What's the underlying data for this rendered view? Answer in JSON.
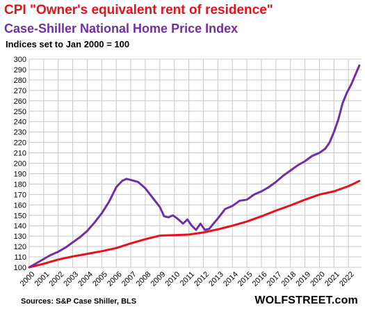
{
  "title": "CPI \"Owner's equivalent rent of residence\"",
  "subtitle": "Case-Shiller National Home Price Index",
  "note": "Indices set to Jan 2000 = 100",
  "source": "Sources: S&P Case Shiller, BLS",
  "brand": "WOLFSTREET.com",
  "colors": {
    "cpi": "#e8101a",
    "case_shiller": "#7030a0",
    "grid": "#c8c8c8"
  },
  "chart_data": {
    "type": "line",
    "xlim": [
      2000,
      2022.9
    ],
    "ylim": [
      100,
      300
    ],
    "ytick_step": 10,
    "grid": true,
    "x_tick_labels": [
      "2000",
      "2001",
      "2002",
      "2003",
      "2004",
      "2005",
      "2006",
      "2007",
      "2008",
      "2009",
      "2010",
      "2011",
      "2012",
      "2013",
      "2014",
      "2015",
      "2016",
      "2017",
      "2018",
      "2019",
      "2020",
      "2021",
      "2022"
    ],
    "series": [
      {
        "name": "CPI \"Owner's equivalent rent of residence\"",
        "color": "#e8101a",
        "points": [
          [
            2000,
            100
          ],
          [
            2001,
            103.5
          ],
          [
            2002,
            107.5
          ],
          [
            2003,
            110.5
          ],
          [
            2004,
            113
          ],
          [
            2005,
            115.5
          ],
          [
            2006,
            118.5
          ],
          [
            2007,
            123
          ],
          [
            2008,
            127
          ],
          [
            2009,
            130.5
          ],
          [
            2010,
            131
          ],
          [
            2011,
            131.5
          ],
          [
            2012,
            133.5
          ],
          [
            2013,
            136.5
          ],
          [
            2014,
            140
          ],
          [
            2015,
            144
          ],
          [
            2016,
            149
          ],
          [
            2017,
            154.5
          ],
          [
            2018,
            159.5
          ],
          [
            2019,
            165
          ],
          [
            2020,
            170
          ],
          [
            2021,
            173
          ],
          [
            2022,
            178
          ],
          [
            2022.75,
            183
          ]
        ]
      },
      {
        "name": "Case-Shiller National Home Price Index",
        "color": "#7030a0",
        "points": [
          [
            2000,
            100
          ],
          [
            2000.5,
            104
          ],
          [
            2001,
            108
          ],
          [
            2001.5,
            112
          ],
          [
            2002,
            115
          ],
          [
            2002.5,
            119
          ],
          [
            2003,
            124
          ],
          [
            2003.5,
            129
          ],
          [
            2004,
            135
          ],
          [
            2004.5,
            143
          ],
          [
            2005,
            152
          ],
          [
            2005.5,
            163
          ],
          [
            2006,
            177
          ],
          [
            2006.4,
            183
          ],
          [
            2006.7,
            185
          ],
          [
            2007,
            184
          ],
          [
            2007.5,
            182
          ],
          [
            2008,
            176
          ],
          [
            2008.5,
            167
          ],
          [
            2009,
            158
          ],
          [
            2009.3,
            149
          ],
          [
            2009.6,
            148
          ],
          [
            2009.9,
            150
          ],
          [
            2010.2,
            147
          ],
          [
            2010.6,
            142
          ],
          [
            2010.9,
            146
          ],
          [
            2011.2,
            140
          ],
          [
            2011.5,
            136
          ],
          [
            2011.8,
            142
          ],
          [
            2012.1,
            136
          ],
          [
            2012.4,
            137
          ],
          [
            2012.7,
            142
          ],
          [
            2013,
            147
          ],
          [
            2013.5,
            156
          ],
          [
            2014,
            159
          ],
          [
            2014.5,
            164
          ],
          [
            2015,
            165
          ],
          [
            2015.5,
            170
          ],
          [
            2016,
            173
          ],
          [
            2016.5,
            177
          ],
          [
            2017,
            182
          ],
          [
            2017.5,
            188
          ],
          [
            2018,
            193
          ],
          [
            2018.5,
            198
          ],
          [
            2019,
            202
          ],
          [
            2019.5,
            207
          ],
          [
            2020,
            210
          ],
          [
            2020.4,
            214
          ],
          [
            2020.7,
            220
          ],
          [
            2021,
            230
          ],
          [
            2021.3,
            242
          ],
          [
            2021.6,
            258
          ],
          [
            2021.9,
            268
          ],
          [
            2022.2,
            276
          ],
          [
            2022.5,
            286
          ],
          [
            2022.75,
            294
          ]
        ]
      }
    ]
  }
}
